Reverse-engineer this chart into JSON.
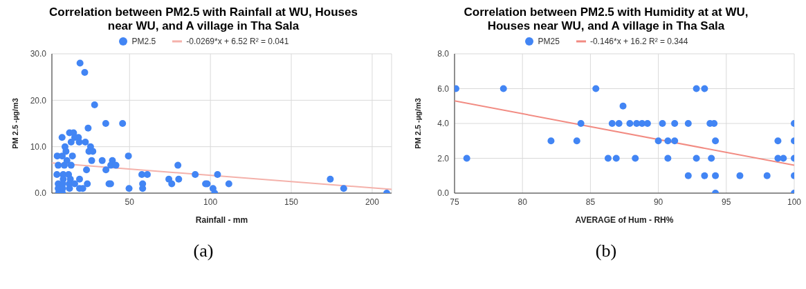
{
  "chart_data": [
    {
      "type": "scatter",
      "title": "Correlation between PM2.5 with Rainfall at WU, Houses near WU, and A village in Tha Sala",
      "xlabel": "Rainfall - mm",
      "ylabel": "PM 2.5 -µg/m3",
      "xlim": [
        2,
        212
      ],
      "xticks": [
        50,
        100,
        150,
        200
      ],
      "ylim": [
        0,
        30
      ],
      "yticks": [
        {
          "value": 0,
          "label": "0.0"
        },
        {
          "value": 10,
          "label": "10.0"
        },
        {
          "value": 20,
          "label": "20.0"
        },
        {
          "value": 30,
          "label": "30.0"
        }
      ],
      "grid": true,
      "legend": "top",
      "marker": "circle",
      "annotations": [
        "(a)"
      ],
      "series": [
        {
          "name": "PM2.5",
          "color": "#4285f4",
          "x": [
            19.4,
            22.3,
            28.4,
            35.3,
            45.7,
            24.4,
            12.9,
            15.4,
            8.3,
            16.1,
            18.4,
            13.9,
            18.9,
            22.7,
            10.1,
            25.9,
            10.7,
            24.9,
            27.3,
            5.3,
            8.4,
            14.7,
            49.3,
            11.3,
            26.6,
            33.1,
            39.4,
            5.9,
            9.7,
            13.9,
            38.4,
            41.6,
            79.9,
            23.4,
            35.4,
            5.1,
            9,
            12.3,
            57.6,
            61,
            90.6,
            104.4,
            9,
            13.4,
            19.1,
            74.3,
            80.4,
            5.9,
            8.7,
            12.7,
            16.1,
            23.9,
            37.3,
            38.3,
            58.1,
            76.1,
            97,
            98,
            111.4,
            5.9,
            8.7,
            12.9,
            19.1,
            21.1,
            49.7,
            58.1,
            101.6,
            6.1,
            8.5,
            102.6,
            174.1,
            182.4,
            209
          ],
          "values": [
            28,
            26,
            19,
            15,
            15,
            14,
            13,
            13,
            12,
            12,
            12,
            11,
            11,
            11,
            10,
            10,
            9,
            9,
            9,
            8,
            8,
            8,
            8,
            7,
            7,
            7,
            7,
            6,
            6,
            6,
            6,
            6,
            6,
            5,
            5,
            4,
            4,
            4,
            4,
            4,
            4,
            4,
            3,
            3,
            3,
            3,
            3,
            2,
            2,
            2,
            2,
            2,
            2,
            2,
            2,
            2,
            2,
            2,
            2,
            1,
            1,
            1,
            1,
            1,
            1,
            1,
            1,
            0,
            0,
            0,
            3,
            1,
            0
          ]
        },
        {
          "type": "line",
          "name": "-0.0269*x + 6.52 R² = 0.041",
          "color": "#f4b1aa",
          "marker": "none",
          "x": [
            2,
            212
          ],
          "values": [
            6.5,
            0.8
          ]
        }
      ]
    },
    {
      "type": "scatter",
      "title": "Correlation between PM2.5 with Humidity at at WU, Houses near WU, and A village in Tha Sala",
      "xlabel": "AVERAGE of Hum - RH%",
      "ylabel": "PM 2.5 -µg/m3",
      "xlim": [
        75,
        100
      ],
      "xticks": [
        75,
        80,
        85,
        90,
        95,
        100
      ],
      "ylim": [
        0,
        8
      ],
      "yticks": [
        {
          "value": 0,
          "label": "0.0"
        },
        {
          "value": 2,
          "label": "2.0"
        },
        {
          "value": 4,
          "label": "4.0"
        },
        {
          "value": 6,
          "label": "6.0"
        },
        {
          "value": 8,
          "label": "8.0"
        }
      ],
      "grid": true,
      "legend": "top",
      "marker": "circle",
      "annotations": [
        "(b)"
      ],
      "series": [
        {
          "name": "PM25",
          "color": "#4285f4",
          "x": [
            75.1,
            75.9,
            78.6,
            82.1,
            84,
            84.3,
            85.4,
            86.3,
            86.6,
            86.9,
            87.1,
            87.4,
            87.9,
            88.4,
            88.8,
            89.2,
            90.3,
            91.2,
            92.2,
            93.8,
            94.1,
            100,
            88.3,
            90.7,
            92.8,
            93.9,
            98.8,
            99.2,
            100,
            90,
            90.7,
            91.2,
            94.2,
            98.8,
            100,
            92.8,
            93.4,
            92.2,
            93.4,
            94.2,
            96,
            98,
            100,
            94.2,
            100
          ],
          "values": [
            6,
            2,
            6,
            3,
            3,
            4,
            6,
            2,
            4,
            2,
            4,
            5,
            4,
            4,
            4,
            4,
            4,
            4,
            4,
            4,
            4,
            4,
            2,
            2,
            2,
            2,
            2,
            2,
            2,
            3,
            3,
            3,
            3,
            3,
            3,
            6,
            6,
            1,
            1,
            1,
            1,
            1,
            1,
            0,
            0
          ]
        },
        {
          "type": "line",
          "name": "-0.146*x + 16.2 R² = 0.344",
          "color": "#f28b82",
          "marker": "none",
          "x": [
            75,
            100
          ],
          "values": [
            5.3,
            1.6
          ]
        }
      ]
    }
  ]
}
